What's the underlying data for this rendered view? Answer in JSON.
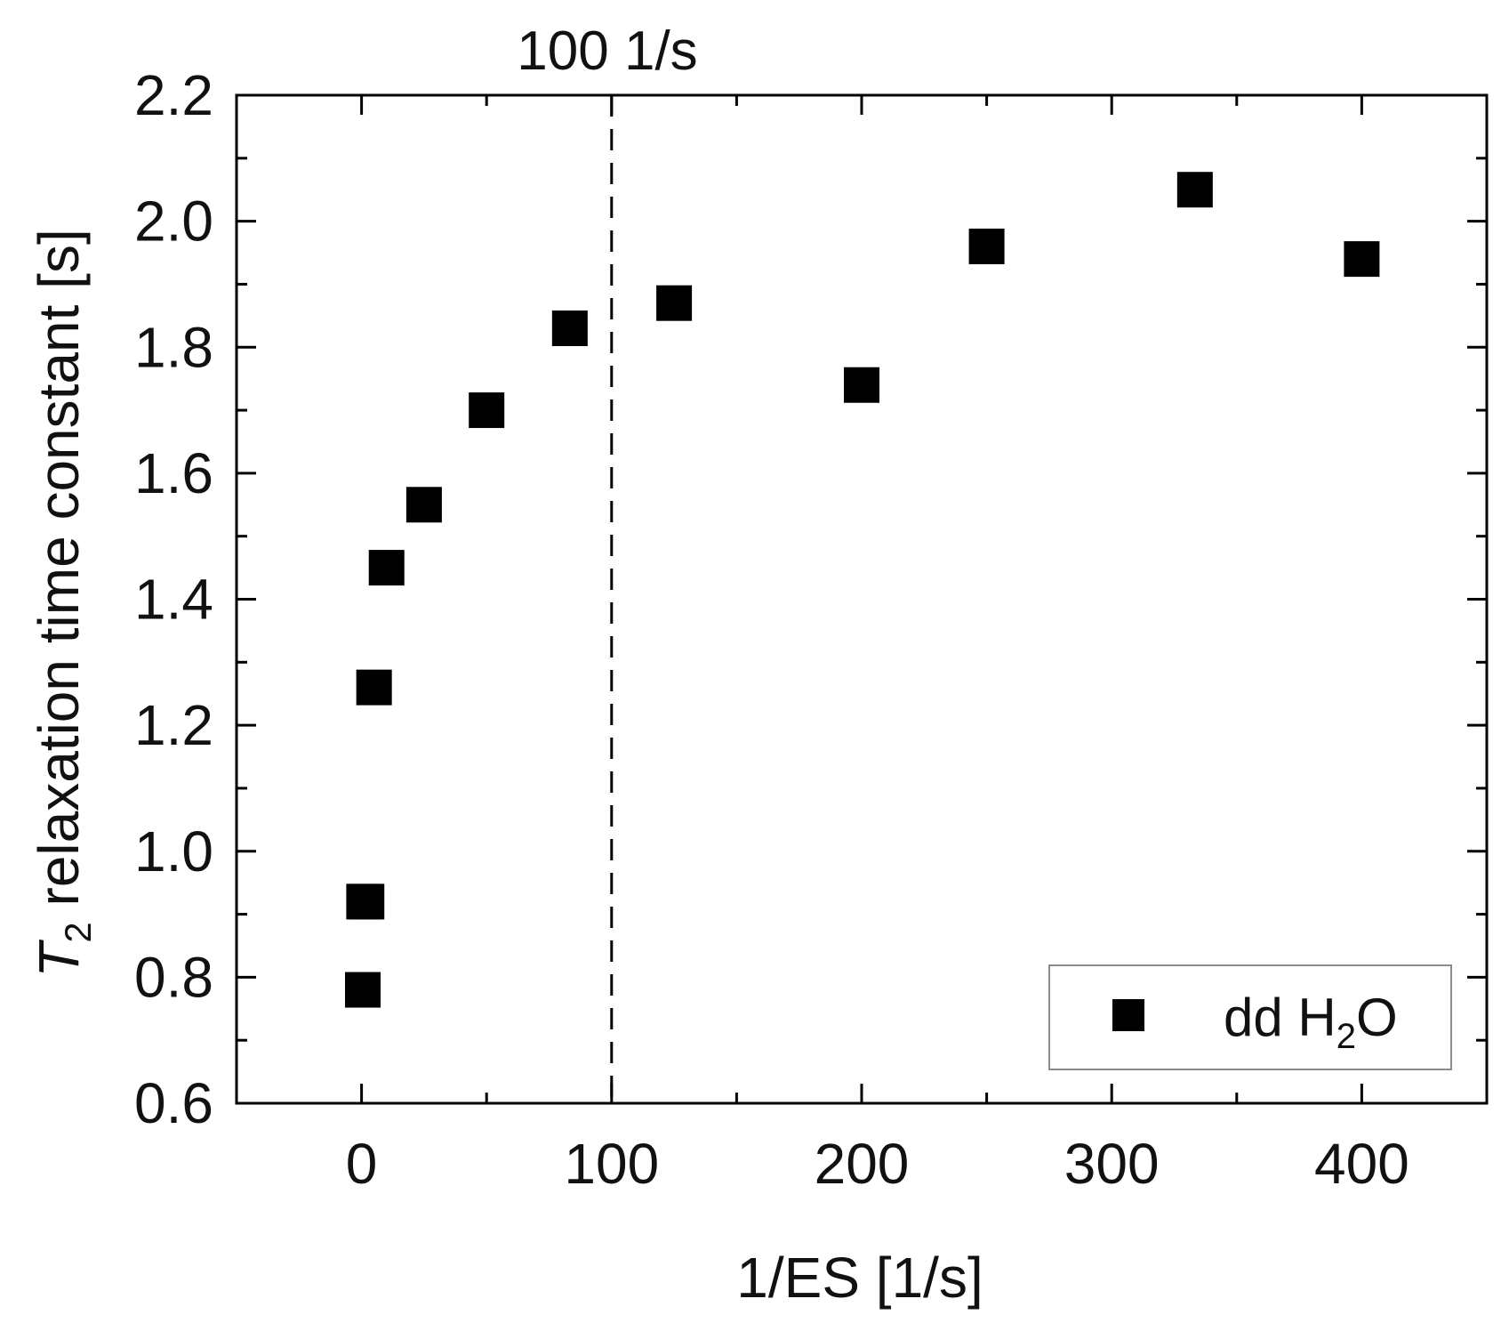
{
  "chart_data": {
    "type": "scatter",
    "x": [
      0.5,
      1,
      2,
      5,
      10,
      25,
      50,
      83.3,
      125,
      200,
      250,
      333.3,
      400
    ],
    "series": [
      {
        "name": "dd H₂O",
        "values": [
          0.78,
          0.92,
          0.92,
          1.26,
          1.45,
          1.55,
          1.7,
          1.83,
          1.87,
          1.74,
          1.96,
          2.05,
          1.94
        ]
      }
    ],
    "xlabel": "1/ES [1/s]",
    "ylabel": {
      "main": "T",
      "sub": "2",
      "rest": " relaxation time constant [s]"
    },
    "xlim": [
      -50,
      450
    ],
    "ylim": [
      0.6,
      2.2
    ],
    "xticks": [
      0,
      100,
      200,
      300,
      400
    ],
    "yticks": [
      0.6,
      0.8,
      1.0,
      1.2,
      1.4,
      1.6,
      1.8,
      2.0,
      2.2
    ],
    "ytick_labels": [
      "0.6",
      "0.8",
      "1.0",
      "1.2",
      "1.4",
      "1.6",
      "1.8",
      "2.0",
      "2.2"
    ],
    "vline": {
      "x": 100,
      "style": "dashed",
      "label": "100 1/s"
    },
    "legend": {
      "position": "bottom-right",
      "marker": "square",
      "text_main": "dd H",
      "text_sub": "2",
      "text_end": "O"
    },
    "marker_color": "#000000",
    "grid": false
  }
}
